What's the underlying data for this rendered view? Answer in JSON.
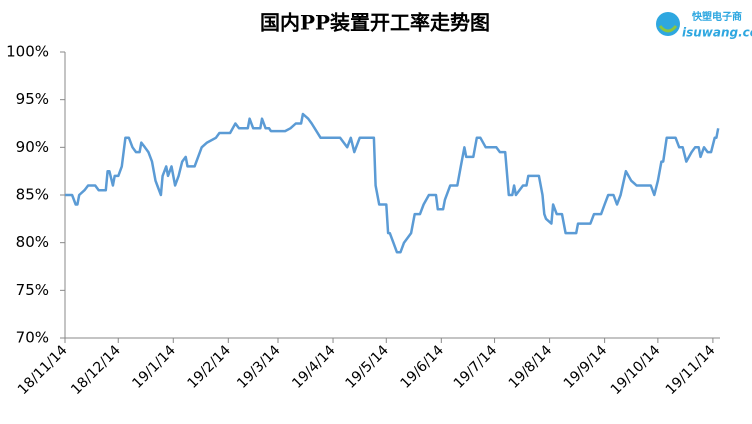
{
  "chart_data": {
    "type": "line",
    "title": "国内PP装置开工率走势图",
    "logo": {
      "name": "快塑电子商",
      "url": "isuwang.co"
    },
    "color": "#5b9bd5",
    "x": [
      "2018-11-14",
      "2018-11-18",
      "2018-11-20",
      "2018-11-21",
      "2018-11-22",
      "2018-11-25",
      "2018-11-27",
      "2018-12-01",
      "2018-12-03",
      "2018-12-07",
      "2018-12-08",
      "2018-12-09",
      "2018-12-11",
      "2018-12-12",
      "2018-12-14",
      "2018-12-16",
      "2018-12-18",
      "2018-12-20",
      "2018-12-22",
      "2018-12-24",
      "2018-12-26",
      "2018-12-27",
      "2018-12-29",
      "2018-12-31",
      "2019-01-02",
      "2019-01-04",
      "2019-01-05",
      "2019-01-07",
      "2019-01-08",
      "2019-01-10",
      "2019-01-11",
      "2019-01-13",
      "2019-01-15",
      "2019-01-17",
      "2019-01-19",
      "2019-01-21",
      "2019-01-22",
      "2019-01-26",
      "2019-01-30",
      "2019-02-02",
      "2019-02-07",
      "2019-02-09",
      "2019-02-15",
      "2019-02-18",
      "2019-02-20",
      "2019-02-25",
      "2019-02-26",
      "2019-02-28",
      "2019-03-04",
      "2019-03-05",
      "2019-03-07",
      "2019-03-09",
      "2019-03-10",
      "2019-03-18",
      "2019-03-21",
      "2019-03-24",
      "2019-03-27",
      "2019-03-28",
      "2019-03-31",
      "2019-04-02",
      "2019-04-07",
      "2019-04-18",
      "2019-04-22",
      "2019-04-24",
      "2019-04-26",
      "2019-04-29",
      "2019-05-07",
      "2019-05-08",
      "2019-05-10",
      "2019-05-14",
      "2019-05-15",
      "2019-05-16",
      "2019-05-18",
      "2019-05-20",
      "2019-05-22",
      "2019-05-24",
      "2019-05-26",
      "2019-05-28",
      "2019-05-30",
      "2019-06-02",
      "2019-06-04",
      "2019-06-07",
      "2019-06-11",
      "2019-06-12",
      "2019-06-15",
      "2019-06-16",
      "2019-06-19",
      "2019-06-23",
      "2019-06-25",
      "2019-06-27",
      "2019-06-28",
      "2019-07-02",
      "2019-07-04",
      "2019-07-06",
      "2019-07-09",
      "2019-07-15",
      "2019-07-17",
      "2019-07-20",
      "2019-07-22",
      "2019-07-24",
      "2019-07-25",
      "2019-07-26",
      "2019-07-30",
      "2019-08-01",
      "2019-08-02",
      "2019-08-08",
      "2019-08-10",
      "2019-08-11",
      "2019-08-12",
      "2019-08-15",
      "2019-08-16",
      "2019-08-18",
      "2019-08-21",
      "2019-08-23",
      "2019-08-29",
      "2019-08-30",
      "2019-09-06",
      "2019-09-08",
      "2019-09-12",
      "2019-09-14",
      "2019-09-16",
      "2019-09-19",
      "2019-09-21",
      "2019-09-23",
      "2019-09-26",
      "2019-09-29",
      "2019-10-02",
      "2019-10-10",
      "2019-10-12",
      "2019-10-14",
      "2019-10-16",
      "2019-10-17",
      "2019-10-19",
      "2019-10-24",
      "2019-10-26",
      "2019-10-28",
      "2019-10-30",
      "2019-11-02",
      "2019-11-04",
      "2019-11-06",
      "2019-11-07",
      "2019-11-09",
      "2019-11-11",
      "2019-11-13",
      "2019-11-15",
      "2019-11-16",
      "2019-11-17"
    ],
    "values": [
      85,
      85,
      84,
      84,
      85,
      85.5,
      86,
      86,
      85.5,
      85.5,
      87.5,
      87.5,
      86,
      87,
      87,
      88,
      91,
      91,
      90,
      89.5,
      89.5,
      90.5,
      90,
      89.5,
      88.5,
      86.5,
      86,
      85,
      87,
      88,
      87,
      88,
      86,
      87,
      88.5,
      89,
      88,
      88,
      90,
      90.5,
      91,
      91.5,
      91.5,
      92.5,
      92,
      92,
      93,
      92,
      92,
      93,
      92,
      92,
      91.7,
      91.7,
      92,
      92.5,
      92.5,
      93.5,
      93,
      92.5,
      91,
      91,
      90,
      91,
      89.5,
      91,
      91,
      86,
      84,
      84,
      81,
      81,
      80,
      79,
      79,
      80,
      80.5,
      81,
      83,
      83,
      84,
      85,
      85,
      83.5,
      83.5,
      84.5,
      86,
      86,
      88,
      90,
      89,
      89,
      91,
      91,
      90,
      90,
      89.5,
      89.5,
      85,
      85,
      86,
      85,
      86,
      86,
      87,
      87,
      85,
      83,
      82.5,
      82,
      84,
      83,
      83,
      81,
      81,
      82,
      82,
      83,
      83,
      84,
      85,
      85,
      84,
      85,
      87.5,
      86.5,
      86,
      86,
      85,
      86.5,
      88.5,
      88.5,
      91,
      91,
      90,
      90,
      88.5,
      89.5,
      90,
      90,
      89,
      90,
      89.5,
      89.5,
      91,
      91,
      92
    ],
    "xlim": [
      "2018-11-14",
      "2019-11-18"
    ],
    "xticks": [
      {
        "value": "2018-11-14",
        "label": "18/11/14"
      },
      {
        "value": "2018-12-14",
        "label": "18/12/14"
      },
      {
        "value": "2019-01-14",
        "label": "19/1/14"
      },
      {
        "value": "2019-02-14",
        "label": "19/2/14"
      },
      {
        "value": "2019-03-14",
        "label": "19/3/14"
      },
      {
        "value": "2019-04-14",
        "label": "19/4/14"
      },
      {
        "value": "2019-05-14",
        "label": "19/5/14"
      },
      {
        "value": "2019-06-14",
        "label": "19/6/14"
      },
      {
        "value": "2019-07-14",
        "label": "19/7/14"
      },
      {
        "value": "2019-08-14",
        "label": "19/8/14"
      },
      {
        "value": "2019-09-14",
        "label": "19/9/14"
      },
      {
        "value": "2019-10-14",
        "label": "19/10/14"
      },
      {
        "value": "2019-11-14",
        "label": "19/11/14"
      }
    ],
    "ylim": [
      70,
      100
    ],
    "yticks": [
      {
        "value": 70,
        "label": "70%"
      },
      {
        "value": 75,
        "label": "75%"
      },
      {
        "value": 80,
        "label": "80%"
      },
      {
        "value": 85,
        "label": "85%"
      },
      {
        "value": 90,
        "label": "90%"
      },
      {
        "value": 95,
        "label": "95%"
      },
      {
        "value": 100,
        "label": "100%"
      }
    ],
    "grid": false
  }
}
